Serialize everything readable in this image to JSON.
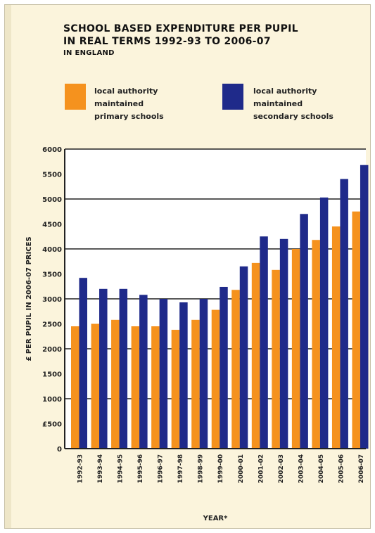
{
  "chart_data": {
    "type": "bar",
    "title": "SCHOOL BASED EXPENDITURE PER PUPIL IN REAL TERMS 1992-93 TO 2006-07",
    "title_lines": [
      "SCHOOL BASED EXPENDITURE PER PUPIL",
      "IN REAL TERMS 1992-93 TO 2006-07",
      "IN ENGLAND"
    ],
    "categories": [
      "1992-93",
      "1993-94",
      "1994-95",
      "1995-96",
      "1996-97",
      "1997-98",
      "1998-99",
      "1999-00",
      "2000-01",
      "2001-02",
      "2002-03",
      "2003-04",
      "2004-05",
      "2005-06",
      "2006-07"
    ],
    "series": [
      {
        "name": "local authority maintained primary schools",
        "legend_lines": [
          "local authority",
          "maintained",
          "primary schools"
        ],
        "color": "#f5921e",
        "values": [
          2450,
          2500,
          2580,
          2450,
          2450,
          2380,
          2580,
          2780,
          3180,
          3720,
          3580,
          4000,
          4180,
          4450,
          4750
        ]
      },
      {
        "name": "local authority maintained secondary schools",
        "legend_lines": [
          "local authority",
          "maintained",
          "secondary schools"
        ],
        "color": "#1f2a8a",
        "values": [
          3420,
          3200,
          3200,
          3080,
          3000,
          2930,
          3000,
          3240,
          3650,
          4250,
          4200,
          4700,
          5030,
          5400,
          5680
        ]
      }
    ],
    "xlabel": "YEAR*",
    "ylabel": "£ PER PUPIL IN 2006-07 PRICES",
    "ylim": [
      0,
      6000
    ],
    "yticks": [
      0,
      500,
      1000,
      1500,
      2000,
      2500,
      3000,
      3500,
      4000,
      4500,
      5000,
      5500,
      6000
    ],
    "ytick_labels": [
      "0",
      "£500",
      "1000",
      "1500",
      "2000",
      "2500",
      "3000",
      "3500",
      "4000",
      "4500",
      "5000",
      "5500",
      "6000"
    ],
    "grid": true
  }
}
